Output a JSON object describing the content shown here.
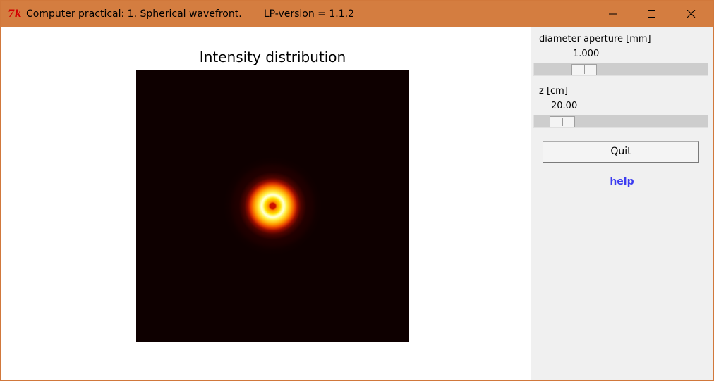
{
  "window": {
    "title": "Computer practical: 1. Spherical wavefront.       LP-version = 1.1.2",
    "app_icon_glyph": "7k",
    "titlebar_color": "#d47d40"
  },
  "plot": {
    "title": "Intensity distribution",
    "colormap": "hot"
  },
  "controls": {
    "aperture": {
      "label": "diameter aperture [mm]",
      "value": "1.000"
    },
    "z": {
      "label": "z [cm]",
      "value": "20.00"
    },
    "quit_label": "Quit",
    "help_label": "help",
    "help_color": "#3c3cf0"
  }
}
